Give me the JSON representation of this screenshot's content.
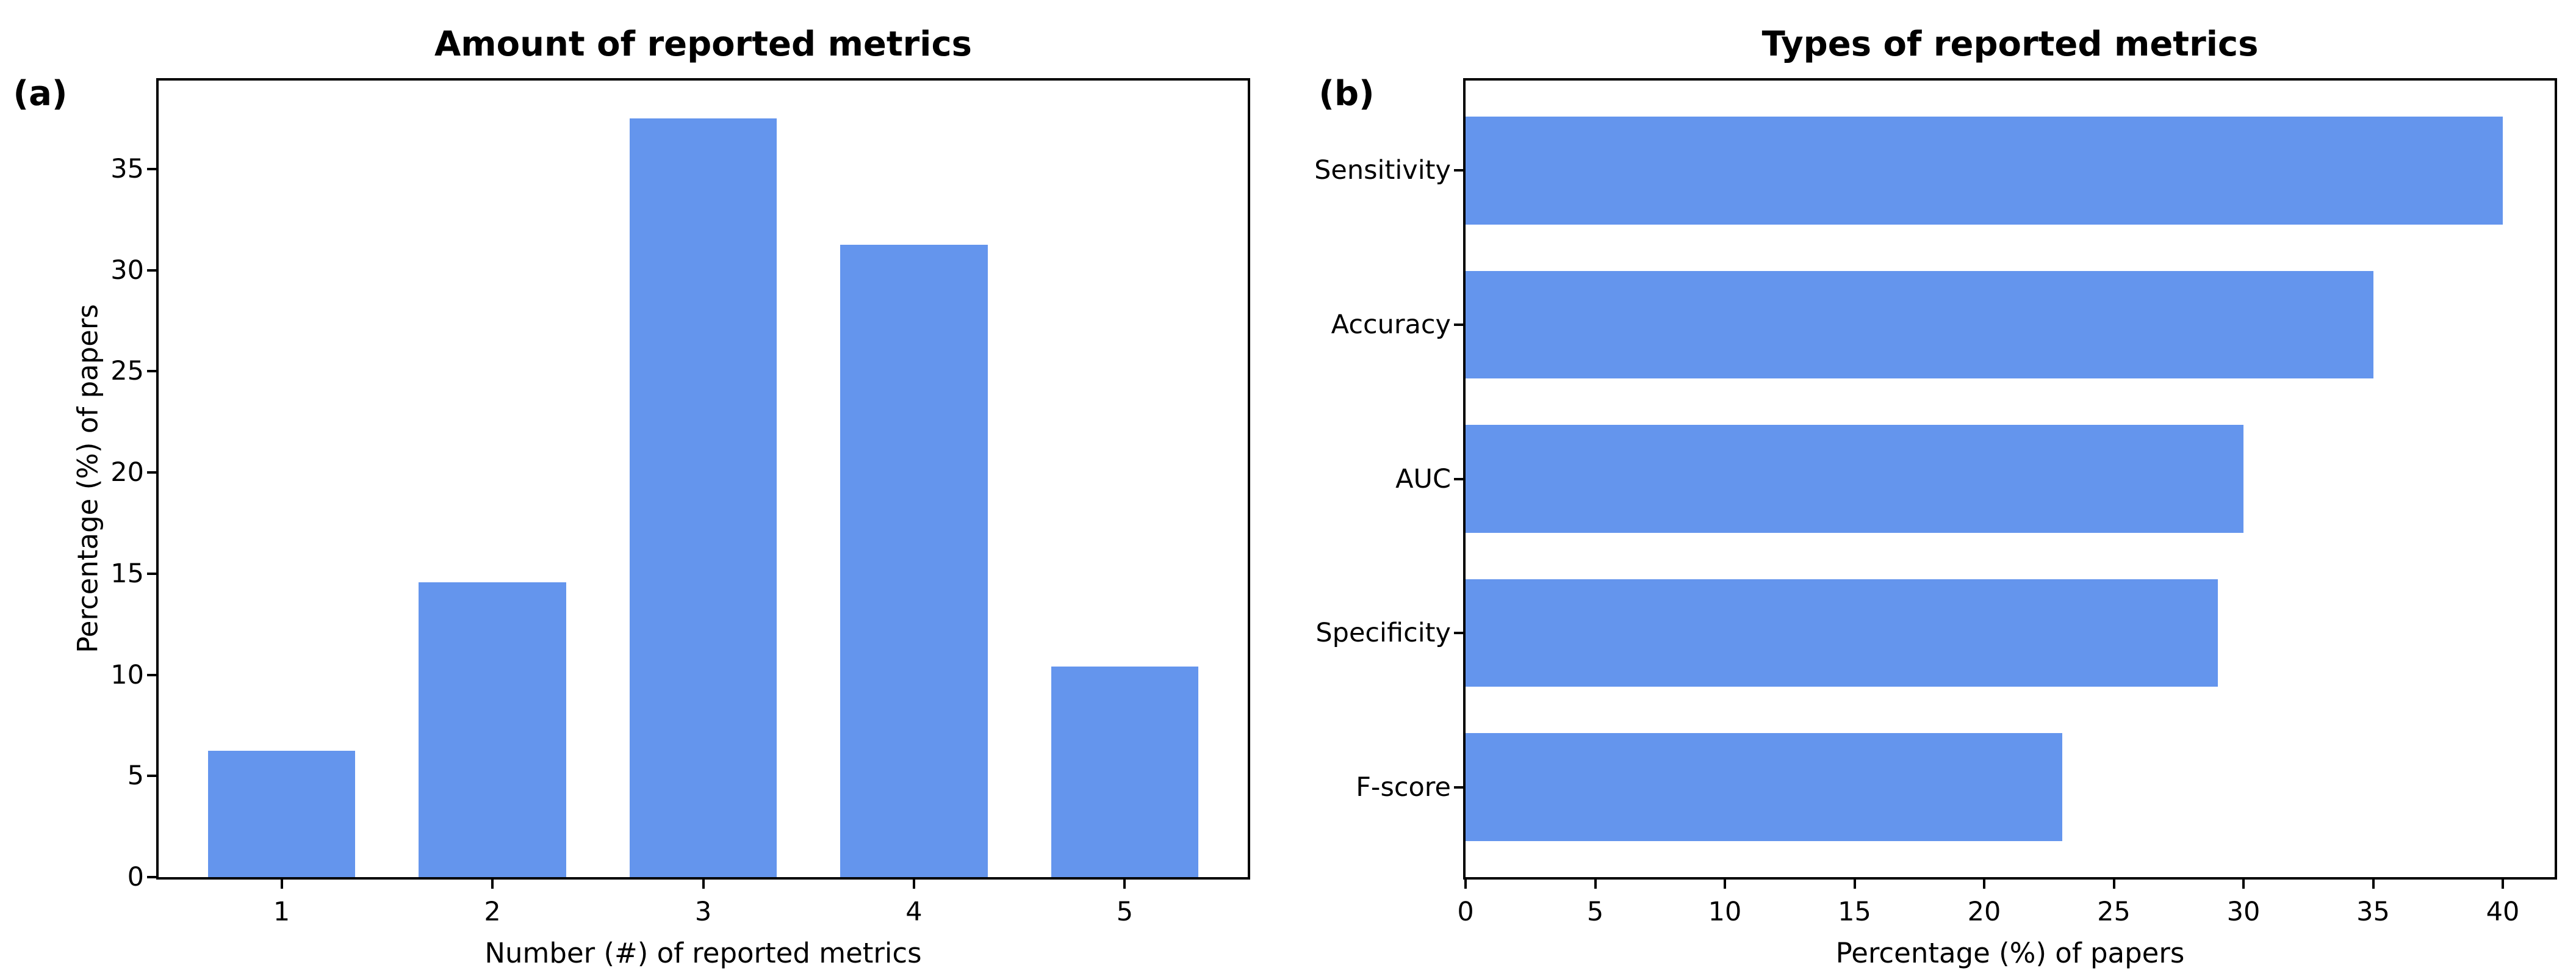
{
  "colors": {
    "bar": "#6495ED",
    "axis": "#000000",
    "background": "#ffffff"
  },
  "chart_data": [
    {
      "type": "bar",
      "panel_label": "(a)",
      "title": "Amount of reported metrics",
      "xlabel": "Number (#) of reported metrics",
      "ylabel": "Percentage (%) of papers",
      "categories": [
        "1",
        "2",
        "3",
        "4",
        "5"
      ],
      "values": [
        6.25,
        14.58,
        37.5,
        31.25,
        10.42
      ],
      "yticks": [
        0,
        5,
        10,
        15,
        20,
        25,
        30,
        35
      ],
      "ylim": [
        0,
        39.375
      ],
      "bar_width_fraction": 0.7,
      "grid": false,
      "legend": null
    },
    {
      "type": "horizontal-bar",
      "panel_label": "(b)",
      "title": "Types of reported metrics",
      "xlabel": "Percentage (%) of papers",
      "ylabel": "",
      "categories": [
        "Sensitivity",
        "Accuracy",
        "AUC",
        "Specificity",
        "F-score"
      ],
      "values": [
        40,
        35,
        30,
        29,
        23
      ],
      "xticks": [
        0,
        5,
        10,
        15,
        20,
        25,
        30,
        35,
        40
      ],
      "xlim": [
        0,
        42
      ],
      "bar_height_fraction": 0.7,
      "grid": false,
      "legend": null
    }
  ]
}
